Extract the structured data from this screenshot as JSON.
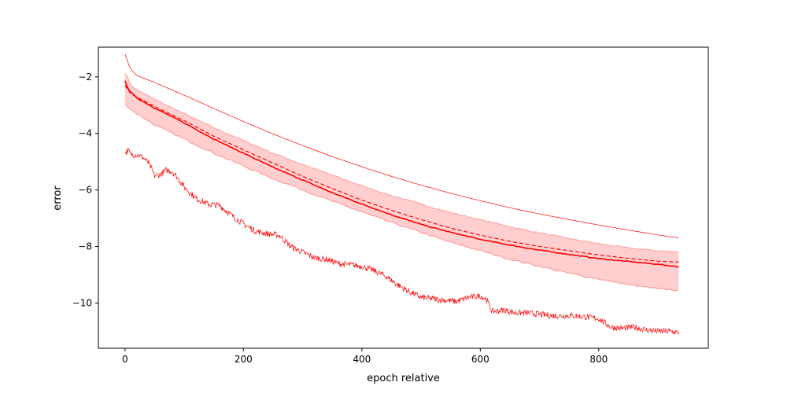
{
  "chart_data": {
    "type": "line",
    "title": "",
    "xlabel": "epoch relative",
    "ylabel": "error",
    "xlim": [
      -45,
      985
    ],
    "ylim": [
      -11.6,
      -0.95
    ],
    "xticks": [
      0,
      200,
      400,
      600,
      800
    ],
    "yticks": [
      -2,
      -4,
      -6,
      -8,
      -10
    ],
    "grid": false,
    "legend": "none",
    "color": "#ff0000",
    "band_color": "#ff8c8c",
    "series": [
      {
        "role": "upper",
        "style": "thin",
        "x": [
          0,
          5,
          10,
          20,
          50,
          100,
          150,
          200,
          250,
          300,
          350,
          400,
          450,
          500,
          550,
          600,
          650,
          700,
          750,
          800,
          850,
          900,
          935
        ],
        "values": [
          -1.2,
          -1.5,
          -1.75,
          -1.95,
          -2.2,
          -2.65,
          -3.12,
          -3.58,
          -4.02,
          -4.43,
          -4.82,
          -5.18,
          -5.52,
          -5.83,
          -6.12,
          -6.38,
          -6.63,
          -6.85,
          -7.05,
          -7.24,
          -7.42,
          -7.59,
          -7.7
        ]
      },
      {
        "role": "band-upper",
        "x": [
          0,
          5,
          10,
          20,
          50,
          100,
          150,
          200,
          250,
          300,
          350,
          400,
          450,
          500,
          550,
          600,
          650,
          700,
          750,
          800,
          850,
          900,
          935
        ],
        "values": [
          -1.85,
          -2.05,
          -2.3,
          -2.45,
          -2.8,
          -3.3,
          -3.8,
          -4.25,
          -4.7,
          -5.1,
          -5.48,
          -5.85,
          -6.2,
          -6.5,
          -6.8,
          -7.05,
          -7.3,
          -7.52,
          -7.72,
          -7.9,
          -8.05,
          -8.15,
          -8.2
        ]
      },
      {
        "role": "band-lower",
        "x": [
          0,
          5,
          10,
          20,
          50,
          100,
          150,
          200,
          250,
          300,
          350,
          400,
          450,
          500,
          550,
          600,
          650,
          700,
          750,
          800,
          850,
          900,
          935
        ],
        "values": [
          -2.95,
          -3.05,
          -3.15,
          -3.3,
          -3.7,
          -4.2,
          -4.7,
          -5.15,
          -5.6,
          -6.0,
          -6.4,
          -6.78,
          -7.15,
          -7.5,
          -7.85,
          -8.15,
          -8.45,
          -8.7,
          -8.95,
          -9.15,
          -9.35,
          -9.5,
          -9.55
        ]
      },
      {
        "role": "mean",
        "style": "solid",
        "x": [
          0,
          5,
          10,
          20,
          50,
          100,
          150,
          200,
          250,
          300,
          350,
          400,
          450,
          500,
          550,
          600,
          650,
          700,
          750,
          800,
          850,
          900,
          935
        ],
        "values": [
          -2.15,
          -2.4,
          -2.55,
          -2.75,
          -3.1,
          -3.63,
          -4.2,
          -4.7,
          -5.2,
          -5.65,
          -6.1,
          -6.5,
          -6.88,
          -7.22,
          -7.5,
          -7.75,
          -7.95,
          -8.13,
          -8.28,
          -8.43,
          -8.53,
          -8.63,
          -8.72
        ]
      },
      {
        "role": "median",
        "style": "dashed",
        "x": [
          0,
          5,
          10,
          20,
          50,
          100,
          150,
          200,
          250,
          300,
          350,
          400,
          450,
          500,
          550,
          600,
          650,
          700,
          750,
          800,
          850,
          900,
          935
        ],
        "values": [
          -2.3,
          -2.45,
          -2.6,
          -2.72,
          -3.05,
          -3.55,
          -4.1,
          -4.58,
          -5.05,
          -5.52,
          -5.95,
          -6.36,
          -6.72,
          -7.05,
          -7.35,
          -7.6,
          -7.82,
          -8.0,
          -8.15,
          -8.3,
          -8.42,
          -8.52,
          -8.55
        ]
      },
      {
        "role": "lower",
        "style": "noisy",
        "x": [
          0,
          5,
          10,
          20,
          30,
          40,
          50,
          60,
          70,
          80,
          90,
          100,
          120,
          140,
          160,
          180,
          200,
          220,
          240,
          260,
          280,
          300,
          320,
          340,
          360,
          380,
          400,
          420,
          440,
          460,
          480,
          500,
          520,
          540,
          560,
          580,
          600,
          610,
          620,
          640,
          660,
          680,
          700,
          720,
          740,
          760,
          780,
          800,
          820,
          840,
          860,
          880,
          900,
          920,
          935
        ],
        "values": [
          -4.7,
          -4.6,
          -4.75,
          -4.75,
          -4.85,
          -5.05,
          -5.5,
          -5.45,
          -5.3,
          -5.35,
          -5.6,
          -5.9,
          -6.3,
          -6.5,
          -6.55,
          -6.9,
          -7.2,
          -7.45,
          -7.55,
          -7.6,
          -8.0,
          -8.2,
          -8.4,
          -8.45,
          -8.6,
          -8.65,
          -8.7,
          -8.85,
          -9.05,
          -9.35,
          -9.6,
          -9.8,
          -9.85,
          -9.9,
          -9.95,
          -9.8,
          -9.75,
          -9.85,
          -10.3,
          -10.25,
          -10.35,
          -10.35,
          -10.4,
          -10.45,
          -10.45,
          -10.45,
          -10.5,
          -10.55,
          -10.85,
          -10.9,
          -10.85,
          -10.95,
          -11.0,
          -11.0,
          -11.05
        ]
      }
    ]
  }
}
